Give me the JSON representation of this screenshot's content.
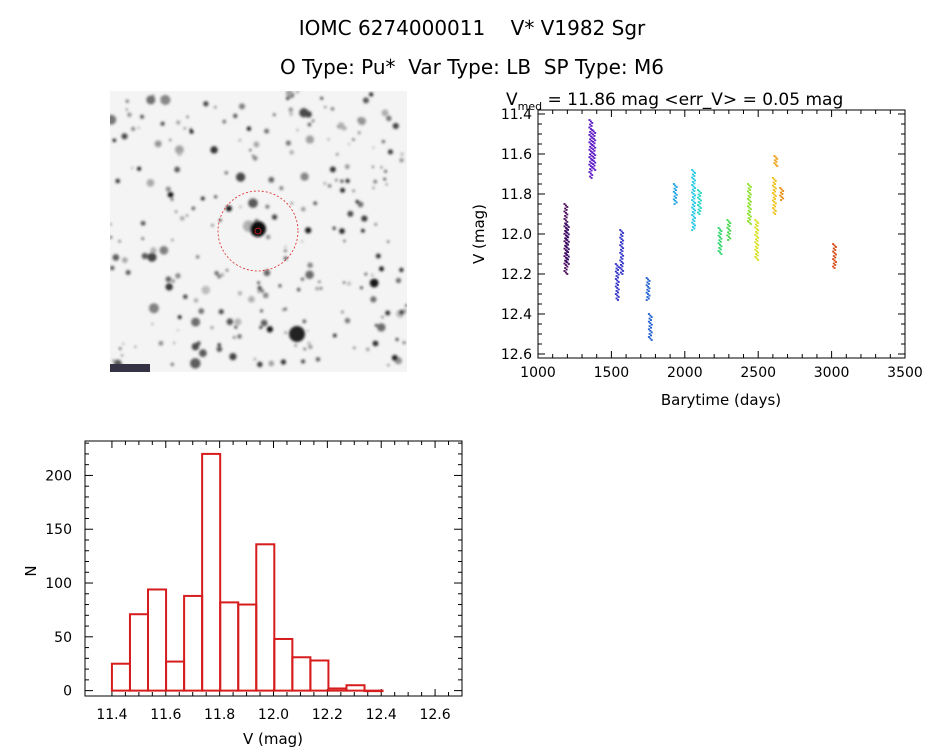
{
  "header": {
    "line1": "IOMC 6274000011    V* V1982 Sgr",
    "line2": "O Type: Pu*  Var Type: LB  SP Type: M6"
  },
  "chart_data": [
    {
      "type": "scatter",
      "title_parts": {
        "v": "V",
        "sub": "med",
        "rest": " = 11.86 mag <err_V> = 0.05 mag"
      },
      "xlabel": "Barytime (days)",
      "ylabel": "V (mag)",
      "xlim": [
        1000,
        3500
      ],
      "ylim": [
        12.62,
        11.38
      ],
      "xticks": [
        1000,
        1500,
        2000,
        2500,
        3000,
        3500
      ],
      "yticks": [
        "11.4",
        "11.6",
        "11.8",
        "12.0",
        "12.2",
        "12.4",
        "12.6"
      ],
      "ytick_values": [
        11.4,
        11.6,
        11.8,
        12.0,
        12.2,
        12.4,
        12.6
      ],
      "y_inverted": true,
      "groups": [
        {
          "x": 1190,
          "y": [
            12.2,
            11.85
          ],
          "color": "#4a0a5a"
        },
        {
          "x": 1200,
          "y": [
            12.15,
            11.95
          ],
          "color": "#3b0f6a"
        },
        {
          "x": 1360,
          "y": [
            11.72,
            11.43
          ],
          "color": "#5b17c4"
        },
        {
          "x": 1380,
          "y": [
            11.68,
            11.48
          ],
          "color": "#5b17c4"
        },
        {
          "x": 1540,
          "y": [
            12.33,
            12.15
          ],
          "color": "#3030c8"
        },
        {
          "x": 1570,
          "y": [
            12.2,
            11.98
          ],
          "color": "#3030c8"
        },
        {
          "x": 1750,
          "y": [
            12.33,
            12.22
          ],
          "color": "#2060d0"
        },
        {
          "x": 1765,
          "y": [
            12.53,
            12.4
          ],
          "color": "#2060d0"
        },
        {
          "x": 1935,
          "y": [
            11.85,
            11.75
          ],
          "color": "#1aa0e6"
        },
        {
          "x": 2060,
          "y": [
            11.98,
            11.68
          ],
          "color": "#22c8e6"
        },
        {
          "x": 2100,
          "y": [
            11.9,
            11.78
          ],
          "color": "#22d4c0"
        },
        {
          "x": 2240,
          "y": [
            12.1,
            11.97
          ],
          "color": "#2ad46a"
        },
        {
          "x": 2300,
          "y": [
            12.03,
            11.93
          ],
          "color": "#44d44a"
        },
        {
          "x": 2440,
          "y": [
            11.95,
            11.75
          ],
          "color": "#8ae02a"
        },
        {
          "x": 2490,
          "y": [
            12.13,
            11.93
          ],
          "color": "#d8e020"
        },
        {
          "x": 2610,
          "y": [
            11.9,
            11.72
          ],
          "color": "#f0c01a"
        },
        {
          "x": 2620,
          "y": [
            11.66,
            11.61
          ],
          "color": "#f0a010"
        },
        {
          "x": 2660,
          "y": [
            11.83,
            11.77
          ],
          "color": "#e88a10"
        },
        {
          "x": 3020,
          "y": [
            12.17,
            12.05
          ],
          "color": "#d84a14"
        }
      ]
    },
    {
      "type": "bar",
      "xlabel": "V (mag)",
      "ylabel": "N",
      "xlim": [
        11.3,
        12.7
      ],
      "ylim": [
        -5,
        232
      ],
      "xticks": [
        "11.4",
        "11.6",
        "11.8",
        "12.0",
        "12.2",
        "12.4",
        "12.6"
      ],
      "xtick_values": [
        11.4,
        11.6,
        11.8,
        12.0,
        12.2,
        12.4,
        12.6
      ],
      "yticks": [
        "0",
        "50",
        "100",
        "150",
        "200"
      ],
      "ytick_values": [
        0,
        50,
        100,
        150,
        200
      ],
      "bin_start": 11.4,
      "bin_width": 0.067,
      "values": [
        25,
        71,
        94,
        27,
        88,
        220,
        82,
        80,
        136,
        48,
        31,
        28,
        2,
        5,
        0
      ],
      "bar_color": "#d61c1c"
    }
  ]
}
